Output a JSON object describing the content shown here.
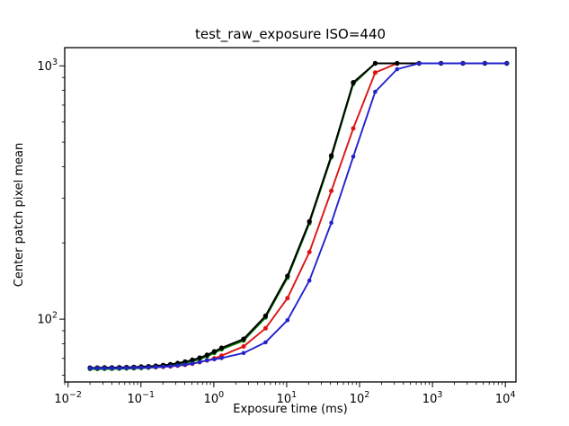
{
  "chart_data": {
    "type": "line",
    "title": "test_raw_exposure ISO=440",
    "xlabel": "Exposure time (ms)",
    "ylabel": "Center patch pixel mean",
    "xscale": "log",
    "yscale": "log",
    "xlim": [
      0.009,
      14000
    ],
    "ylim": [
      56.5,
      1180
    ],
    "x_major_tick_exponents": [
      -2,
      -1,
      0,
      1,
      2,
      3,
      4
    ],
    "y_major_tick_exponents": [
      2,
      3
    ],
    "grid": false,
    "legend": "none",
    "frame_color": "#000000",
    "background_color": "#ffffff",
    "marker": "circle",
    "x": [
      0.02,
      0.0252,
      0.0317,
      0.04,
      0.0504,
      0.0635,
      0.08,
      0.1008,
      0.127,
      0.16,
      0.2016,
      0.254,
      0.32,
      0.4032,
      0.508,
      0.64,
      0.8063,
      1.016,
      1.28,
      2.56,
      5.12,
      10.24,
      20.48,
      40.96,
      81.92,
      163.8,
      327.7,
      655.4,
      1311,
      2621,
      5243,
      10486
    ],
    "series": [
      {
        "name": "red",
        "color": "#dd1414",
        "marker_radius": 2.5,
        "values": [
          63.8,
          63.8,
          63.9,
          63.9,
          64.0,
          64.0,
          64.1,
          64.2,
          64.4,
          64.6,
          64.8,
          65.1,
          65.5,
          66.0,
          66.7,
          67.6,
          68.7,
          70.0,
          71.8,
          78.0,
          92,
          121,
          184,
          321,
          566,
          940,
          1023,
          1023,
          1023,
          1023,
          1023,
          1023
        ]
      },
      {
        "name": "green",
        "color": "#007700",
        "marker_radius": 2.4,
        "values": [
          63.5,
          63.5,
          63.6,
          63.6,
          63.7,
          63.8,
          63.9,
          64.1,
          64.3,
          64.6,
          65.0,
          65.5,
          66.2,
          67.1,
          68.1,
          69.5,
          71.3,
          73.5,
          76.0,
          82.3,
          101.5,
          145.5,
          239,
          435,
          848,
          1023,
          1023,
          1023,
          1023,
          1023,
          1023,
          1023
        ]
      },
      {
        "name": "black",
        "color": "#000000",
        "marker_radius": 2.7,
        "values": [
          64.3,
          64.3,
          64.4,
          64.4,
          64.5,
          64.6,
          64.7,
          64.9,
          65.1,
          65.4,
          65.8,
          66.3,
          67.0,
          67.9,
          69.0,
          70.4,
          72.2,
          74.5,
          77.0,
          83.5,
          103,
          148,
          243,
          442,
          860,
          1023,
          1023,
          1023,
          1023,
          1023,
          1023,
          1023
        ]
      },
      {
        "name": "blue",
        "color": "#2222cc",
        "marker_radius": 2.3,
        "values": [
          64.0,
          64.0,
          64.0,
          64.1,
          64.1,
          64.2,
          64.3,
          64.4,
          64.5,
          64.7,
          64.9,
          65.2,
          65.6,
          66.1,
          66.8,
          67.7,
          68.8,
          69.4,
          70.2,
          73.5,
          81,
          99,
          142,
          240,
          438,
          790,
          970,
          1023,
          1023,
          1023,
          1023,
          1023
        ]
      }
    ]
  }
}
